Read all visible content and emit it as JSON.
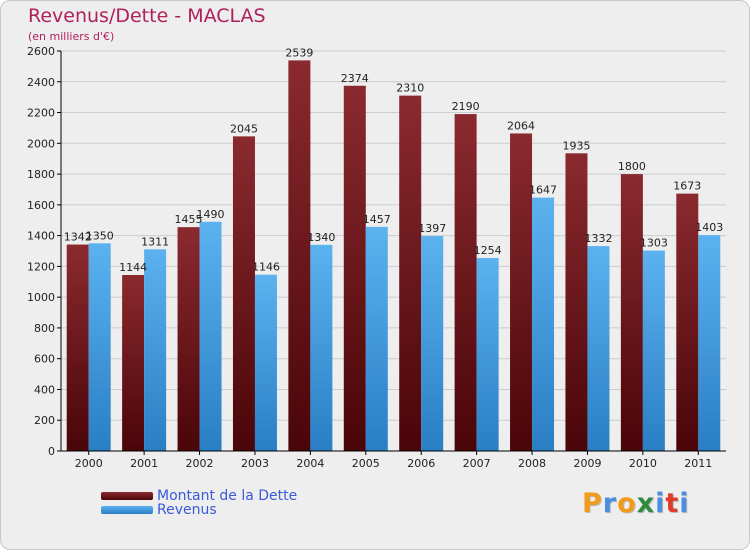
{
  "chart_data": {
    "type": "bar",
    "title": "Revenus/Dette - MACLAS",
    "subtitle": "(en milliers d'€)",
    "categories": [
      "2000",
      "2001",
      "2002",
      "2003",
      "2004",
      "2005",
      "2006",
      "2007",
      "2008",
      "2009",
      "2010",
      "2011"
    ],
    "series": [
      {
        "name": "Montant de la Dette",
        "values": [
          1342,
          1144,
          1455,
          2045,
          2539,
          2374,
          2310,
          2190,
          2064,
          1935,
          1800,
          1673
        ],
        "color": "#7a1a1f"
      },
      {
        "name": "Revenus",
        "values": [
          1350,
          1311,
          1490,
          1146,
          1340,
          1457,
          1397,
          1254,
          1647,
          1332,
          1303,
          1403
        ],
        "color": "#4aa3e6"
      }
    ],
    "ylim": [
      0,
      2600
    ],
    "ytick_step": 200,
    "grid": true,
    "legend": "bottom-left"
  },
  "logo": {
    "text": "Proxiti",
    "colors": [
      "#f29a1a",
      "#4a8ee0",
      "#f29a1a",
      "#2f8a3c",
      "#4a8ee0",
      "#e03a2a",
      "#4a8ee0"
    ]
  }
}
